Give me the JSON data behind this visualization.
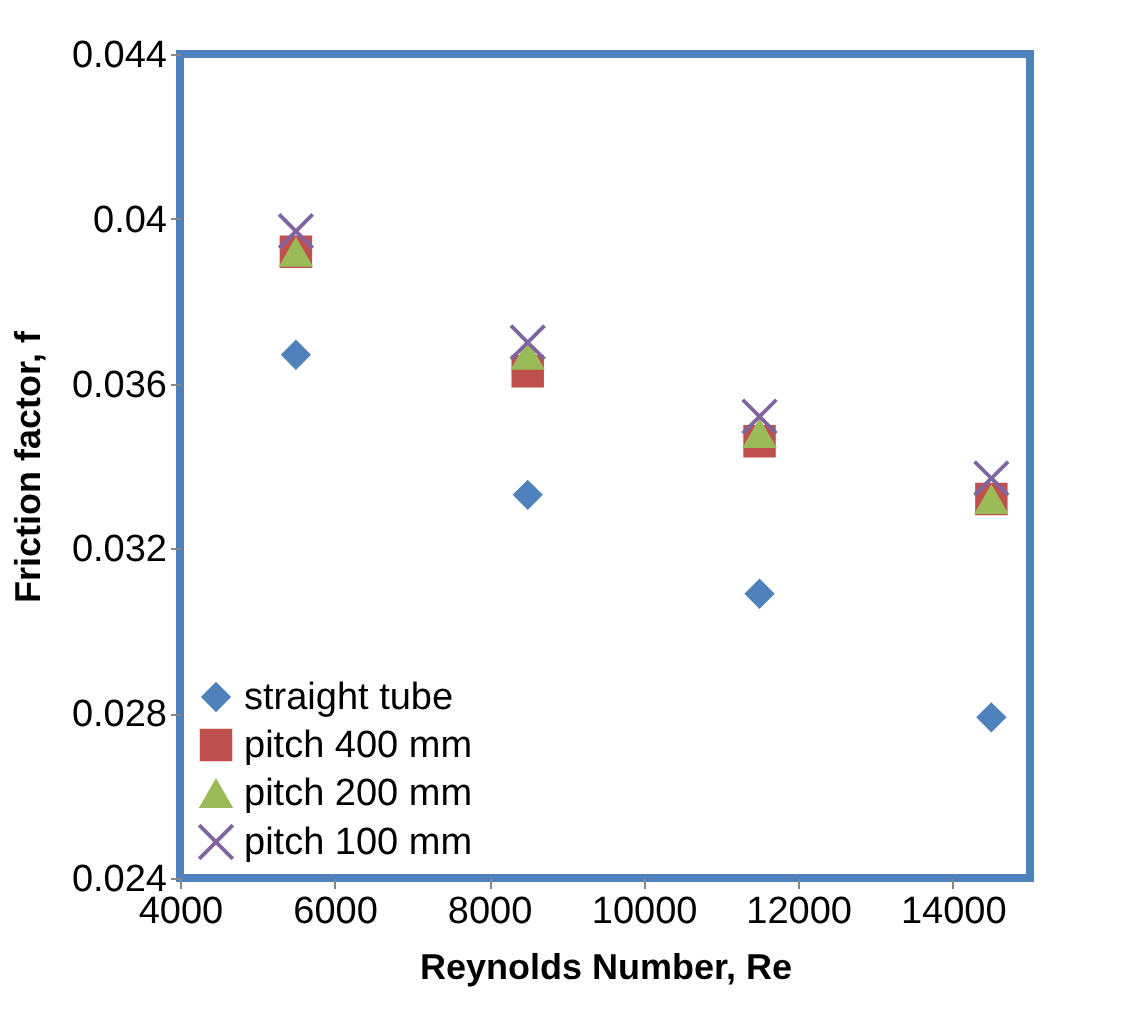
{
  "chart_data": {
    "type": "scatter",
    "xlabel": "Reynolds Number, Re",
    "ylabel": "Friction factor, f",
    "x": [
      5500,
      8500,
      11500,
      14500
    ],
    "series": [
      {
        "name": "straight tube",
        "color": "#4f81bd",
        "marker": "diamond",
        "values": [
          0.0367,
          0.0333,
          0.0309,
          0.0279
        ]
      },
      {
        "name": "pitch 400 mm",
        "color": "#c0504d",
        "marker": "square",
        "values": [
          0.0392,
          0.0363,
          0.0346,
          0.0332
        ]
      },
      {
        "name": "pitch 200 mm",
        "color": "#9bbb59",
        "marker": "triangle",
        "values": [
          0.0392,
          0.0367,
          0.0348,
          0.0332
        ]
      },
      {
        "name": "pitch 100 mm",
        "color": "#8064a2",
        "marker": "cross",
        "values": [
          0.0397,
          0.037,
          0.0352,
          0.0337
        ]
      }
    ],
    "xlim": [
      4000,
      15000
    ],
    "xticks": [
      4000,
      6000,
      8000,
      10000,
      12000,
      14000
    ],
    "ylim": [
      0.024,
      0.044
    ],
    "yticks": [
      0.024,
      0.028,
      0.032,
      0.036,
      0.04,
      0.044
    ],
    "grid": false,
    "legend": "bottom left"
  }
}
